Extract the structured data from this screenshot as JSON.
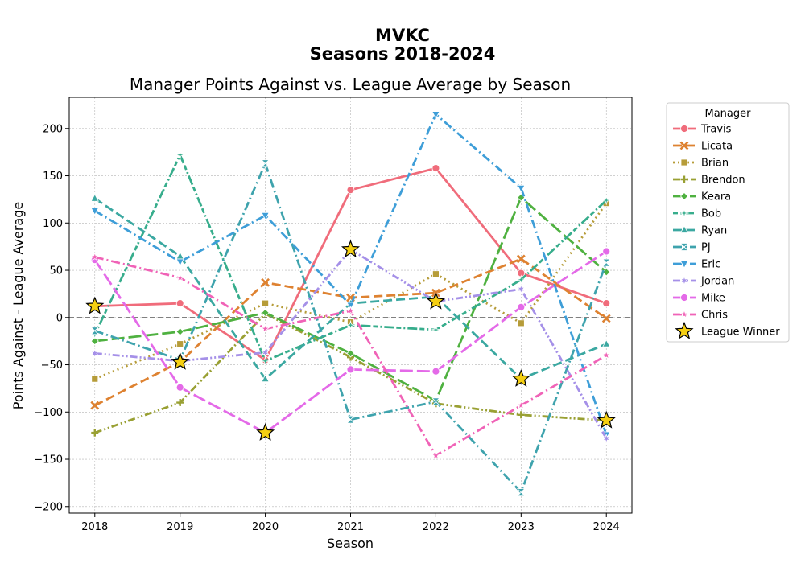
{
  "suptitle_line1": "MVKC",
  "suptitle_line2": "Seasons 2018-2024",
  "chart_data": {
    "type": "line",
    "title": "Manager Points Against vs. League Average by Season",
    "xlabel": "Season",
    "ylabel": "Points Against - League Average",
    "x": [
      2018,
      2019,
      2020,
      2021,
      2022,
      2023,
      2024
    ],
    "xlim": [
      2017.7,
      2024.3
    ],
    "ylim": [
      -207,
      233
    ],
    "yticks": [
      -200,
      -150,
      -100,
      -50,
      0,
      50,
      100,
      150,
      200
    ],
    "grid": true,
    "reference_line": 0,
    "legend": {
      "title": "Manager",
      "position": "outside-right"
    },
    "series": [
      {
        "name": "Travis",
        "color": "#f06c7b",
        "dash": "solid",
        "marker": "circle",
        "values": [
          12,
          15,
          -45,
          135,
          158,
          47,
          15
        ]
      },
      {
        "name": "Licata",
        "color": "#de8231",
        "dash": "dashed",
        "marker": "x",
        "values": [
          -93,
          -47,
          37,
          21,
          26,
          62,
          -1
        ]
      },
      {
        "name": "Brian",
        "color": "#b69c39",
        "dash": "dotted",
        "marker": "square",
        "values": [
          -65,
          -28,
          15,
          -5,
          46,
          -6,
          121
        ]
      },
      {
        "name": "Brendon",
        "color": "#99a033",
        "dash": "dashdotdot",
        "marker": "plus",
        "values": [
          -122,
          -90,
          4,
          -42,
          -91,
          -103,
          -109
        ]
      },
      {
        "name": "Keara",
        "color": "#4fb140",
        "dash": "longdash",
        "marker": "diamond",
        "values": [
          -25,
          -15,
          5,
          -38,
          -88,
          127,
          48
        ]
      },
      {
        "name": "Bob",
        "color": "#37ad8c",
        "dash": "dashdotlong",
        "marker": "star4",
        "values": [
          -18,
          172,
          -46,
          -8,
          -13,
          40,
          124
        ]
      },
      {
        "name": "Ryan",
        "color": "#3ba8a1",
        "dash": "dashed",
        "marker": "triangle-up",
        "values": [
          126,
          65,
          -65,
          15,
          22,
          -65,
          -28
        ]
      },
      {
        "name": "PJ",
        "color": "#3ea3ad",
        "dash": "dashdot",
        "marker": "bowtie",
        "values": [
          -14,
          -45,
          163,
          -108,
          -89,
          -185,
          58
        ]
      },
      {
        "name": "Eric",
        "color": "#3e9ed8",
        "dash": "dashdot",
        "marker": "triangle-down",
        "values": [
          113,
          59,
          108,
          13,
          215,
          137,
          -124
        ]
      },
      {
        "name": "Jordan",
        "color": "#a590e8",
        "dash": "dashdotdot",
        "marker": "star6",
        "values": [
          -38,
          -46,
          -37,
          72,
          17,
          30,
          -128
        ]
      },
      {
        "name": "Mike",
        "color": "#e46ae8",
        "dash": "longdash",
        "marker": "circle",
        "values": [
          61,
          -74,
          -122,
          -55,
          -57,
          11,
          70
        ]
      },
      {
        "name": "Chris",
        "color": "#f063b7",
        "dash": "dashdot",
        "marker": "star",
        "values": [
          64,
          42,
          -12,
          7,
          -146,
          -93,
          -40
        ]
      }
    ],
    "league_winner": {
      "label": "League Winner",
      "color": "#f5cf12",
      "points": [
        [
          2018,
          12
        ],
        [
          2019,
          -47
        ],
        [
          2020,
          -122
        ],
        [
          2021,
          72
        ],
        [
          2022,
          17
        ],
        [
          2023,
          -65
        ],
        [
          2024,
          -109
        ]
      ]
    }
  }
}
